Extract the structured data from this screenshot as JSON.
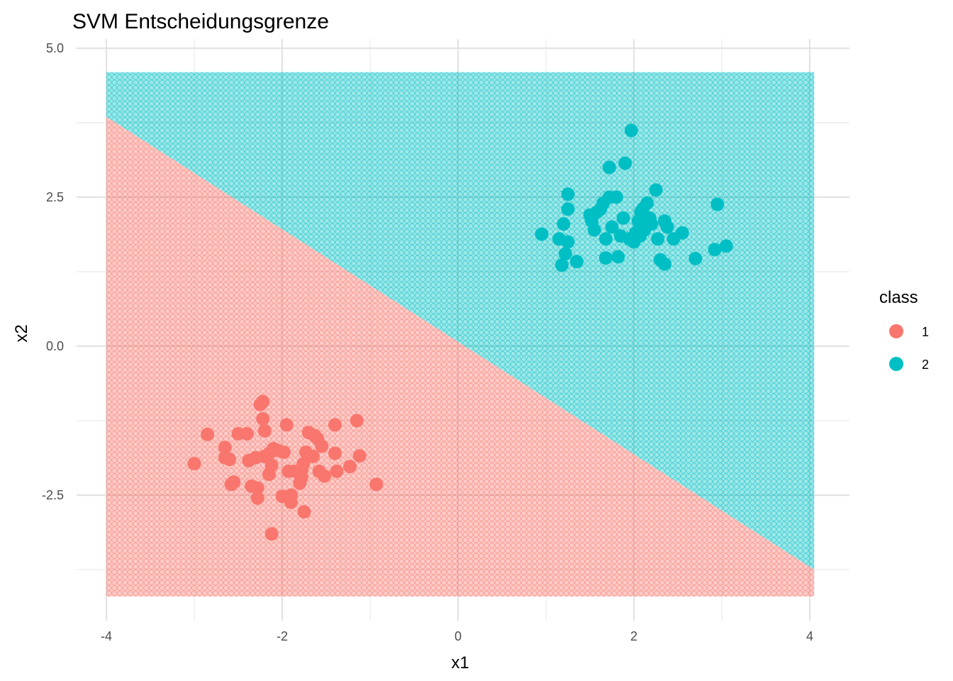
{
  "chart_data": {
    "type": "scatter",
    "title": "SVM Entscheidungsgrenze",
    "xlabel": "x1",
    "ylabel": "x2",
    "xlim": [
      -4.1,
      4.2
    ],
    "ylim": [
      -4.5,
      5.0
    ],
    "x_ticks": [
      -4,
      -2,
      0,
      2,
      4
    ],
    "x_tick_labels": [
      "-4",
      "-2",
      "0",
      "2",
      "4"
    ],
    "y_ticks": [
      -2.5,
      0,
      2.5,
      5
    ],
    "y_tick_labels": [
      "-2.5",
      "0.0",
      "2.5",
      "5.0"
    ],
    "grid": true,
    "legend": {
      "title": "class",
      "position": "right",
      "entries": [
        {
          "label": "1",
          "color": "#F8766D"
        },
        {
          "label": "2",
          "color": "#00BFC4"
        }
      ]
    },
    "decision_region": {
      "x_range": [
        -4.0,
        4.05
      ],
      "y_range": [
        -4.2,
        4.6
      ],
      "boundary_line": {
        "x": [
          -4.0,
          4.05
        ],
        "y": [
          3.85,
          -3.75
        ]
      },
      "class_above": "2",
      "class_below": "1"
    },
    "series": [
      {
        "name": "1",
        "color": "#F8766D",
        "points": [
          [
            -3.0,
            -1.97
          ],
          [
            -2.85,
            -1.48
          ],
          [
            -2.65,
            -1.7
          ],
          [
            -2.65,
            -1.87
          ],
          [
            -2.6,
            -1.9
          ],
          [
            -2.55,
            -2.28
          ],
          [
            -2.58,
            -2.32
          ],
          [
            -2.5,
            -1.47
          ],
          [
            -2.4,
            -1.47
          ],
          [
            -2.38,
            -1.92
          ],
          [
            -2.35,
            -2.35
          ],
          [
            -2.3,
            -1.87
          ],
          [
            -2.28,
            -2.38
          ],
          [
            -2.28,
            -2.55
          ],
          [
            -2.25,
            -0.98
          ],
          [
            -2.22,
            -0.93
          ],
          [
            -2.22,
            -1.22
          ],
          [
            -2.2,
            -1.42
          ],
          [
            -2.2,
            -1.85
          ],
          [
            -2.15,
            -1.8
          ],
          [
            -2.15,
            -2.15
          ],
          [
            -2.12,
            -2.0
          ],
          [
            -2.1,
            -1.72
          ],
          [
            -2.12,
            -3.15
          ],
          [
            -2.05,
            -1.75
          ],
          [
            -2.0,
            -2.52
          ],
          [
            -1.98,
            -1.78
          ],
          [
            -1.95,
            -1.32
          ],
          [
            -1.93,
            -2.1
          ],
          [
            -1.9,
            -2.5
          ],
          [
            -1.9,
            -2.62
          ],
          [
            -1.85,
            -2.1
          ],
          [
            -1.8,
            -2.3
          ],
          [
            -1.78,
            -2.2
          ],
          [
            -1.78,
            -2.08
          ],
          [
            -1.76,
            -1.98
          ],
          [
            -1.75,
            -2.78
          ],
          [
            -1.73,
            -1.78
          ],
          [
            -1.7,
            -1.45
          ],
          [
            -1.65,
            -1.85
          ],
          [
            -1.63,
            -1.5
          ],
          [
            -1.6,
            -1.55
          ],
          [
            -1.58,
            -2.1
          ],
          [
            -1.55,
            -1.68
          ],
          [
            -1.52,
            -2.18
          ],
          [
            -1.4,
            -1.32
          ],
          [
            -1.4,
            -1.8
          ],
          [
            -1.38,
            -2.1
          ],
          [
            -1.23,
            -2.02
          ],
          [
            -1.15,
            -1.25
          ],
          [
            -1.12,
            -1.84
          ],
          [
            -0.93,
            -2.32
          ]
        ]
      },
      {
        "name": "2",
        "color": "#00BFC4",
        "points": [
          [
            0.95,
            1.88
          ],
          [
            1.15,
            1.8
          ],
          [
            1.18,
            1.36
          ],
          [
            1.2,
            2.05
          ],
          [
            1.22,
            1.55
          ],
          [
            1.25,
            1.75
          ],
          [
            1.25,
            2.55
          ],
          [
            1.25,
            2.3
          ],
          [
            1.35,
            1.42
          ],
          [
            1.5,
            2.2
          ],
          [
            1.52,
            2.1
          ],
          [
            1.55,
            1.95
          ],
          [
            1.58,
            2.25
          ],
          [
            1.62,
            2.3
          ],
          [
            1.65,
            2.4
          ],
          [
            1.68,
            1.8
          ],
          [
            1.68,
            1.48
          ],
          [
            1.72,
            2.5
          ],
          [
            1.72,
            3.0
          ],
          [
            1.75,
            2.0
          ],
          [
            1.8,
            2.5
          ],
          [
            1.82,
            1.5
          ],
          [
            1.85,
            1.85
          ],
          [
            1.88,
            2.15
          ],
          [
            1.9,
            3.07
          ],
          [
            1.95,
            1.8
          ],
          [
            1.97,
            3.62
          ],
          [
            2.0,
            1.75
          ],
          [
            2.02,
            1.9
          ],
          [
            2.05,
            2.1
          ],
          [
            2.07,
            1.85
          ],
          [
            2.08,
            2.25
          ],
          [
            2.1,
            2.3
          ],
          [
            2.12,
            1.95
          ],
          [
            2.15,
            2.4
          ],
          [
            2.18,
            2.15
          ],
          [
            2.2,
            2.05
          ],
          [
            2.25,
            2.62
          ],
          [
            2.27,
            1.8
          ],
          [
            2.3,
            1.45
          ],
          [
            2.35,
            1.38
          ],
          [
            2.35,
            2.1
          ],
          [
            2.38,
            2.0
          ],
          [
            2.45,
            1.8
          ],
          [
            2.55,
            1.9
          ],
          [
            2.7,
            1.47
          ],
          [
            2.92,
            1.62
          ],
          [
            2.95,
            2.38
          ],
          [
            3.05,
            1.68
          ]
        ]
      }
    ]
  }
}
